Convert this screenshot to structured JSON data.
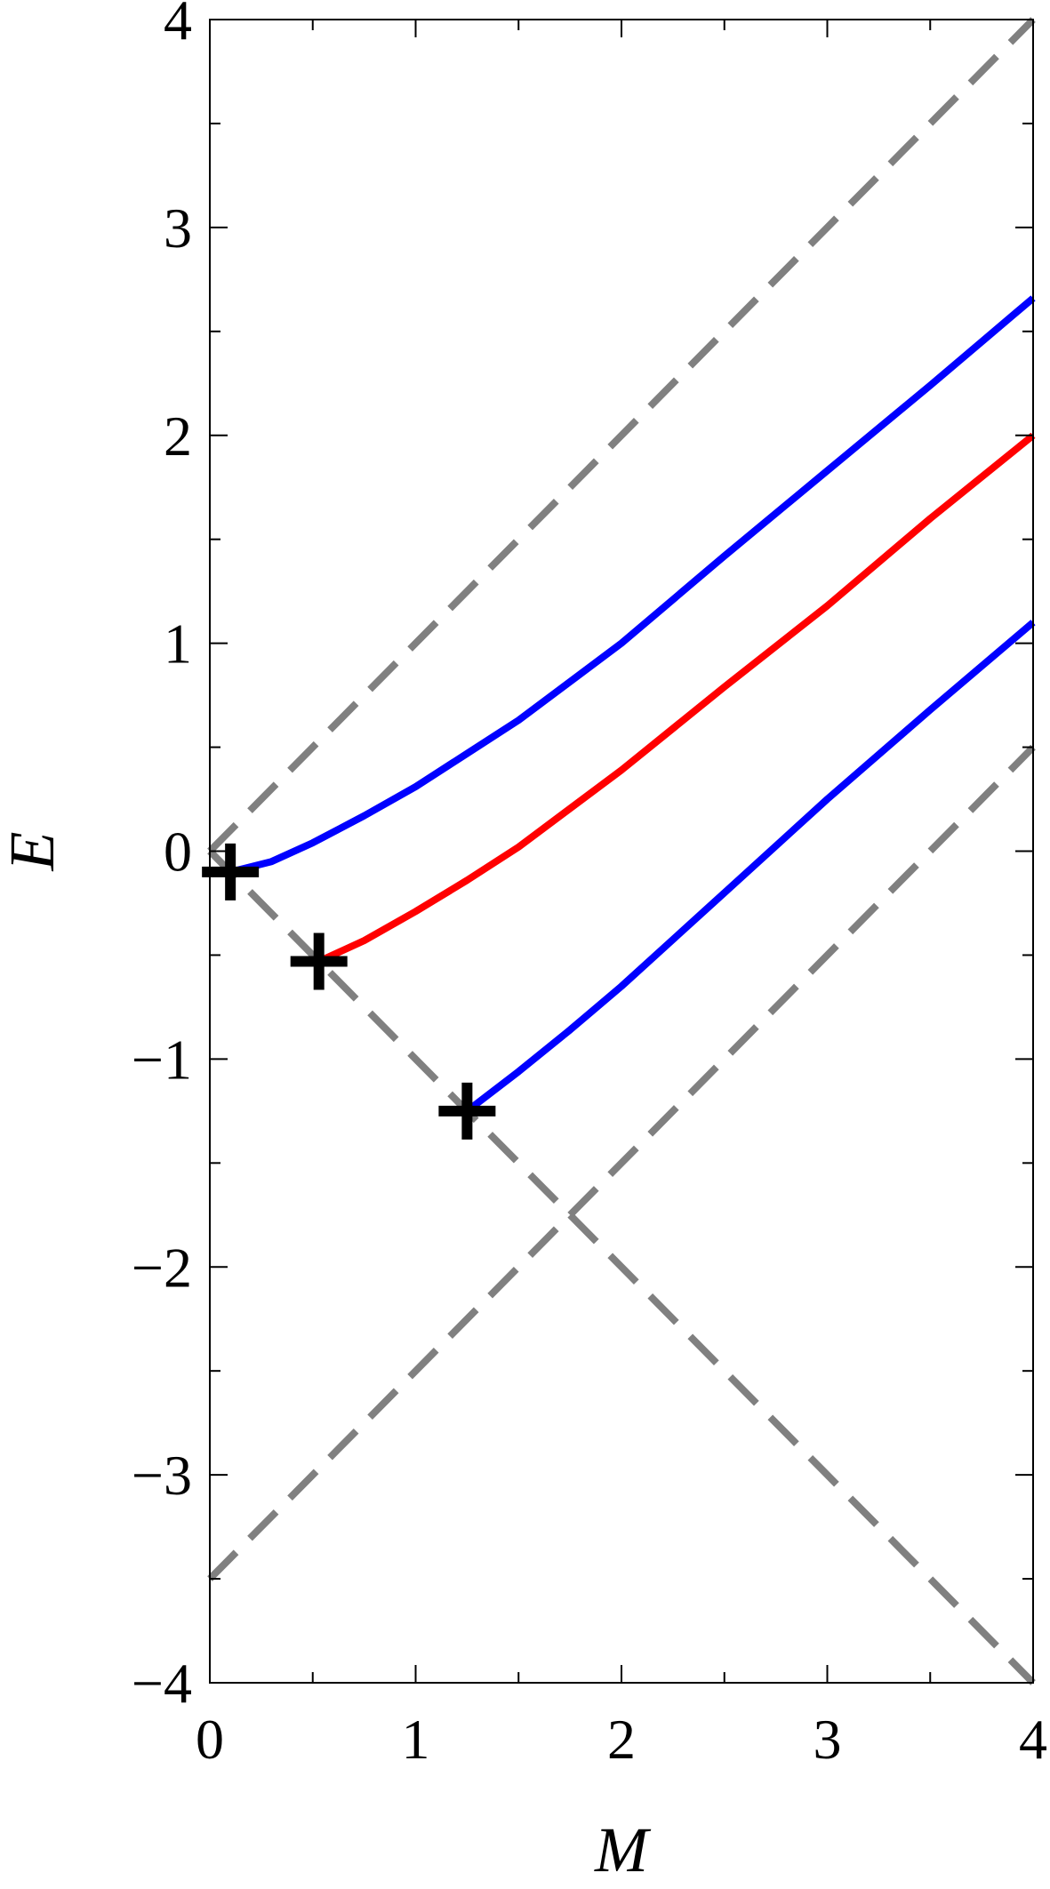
{
  "chart_data": {
    "type": "line",
    "xlabel": "M",
    "ylabel": "E",
    "xlim": [
      0,
      4
    ],
    "ylim": [
      -4,
      4
    ],
    "x_ticks": [
      0,
      1,
      2,
      3,
      4
    ],
    "y_ticks": [
      -4,
      -3,
      -2,
      -1,
      0,
      1,
      2,
      3,
      4
    ],
    "x_tick_labels": [
      "0",
      "1",
      "2",
      "3",
      "4"
    ],
    "y_tick_labels": [
      "−4",
      "−3",
      "−2",
      "−1",
      "0",
      "1",
      "2",
      "3",
      "4"
    ],
    "minor_ticks": true,
    "grid": false,
    "series": [
      {
        "color": "#0000ff",
        "style": "solid",
        "points": [
          [
            0.1,
            -0.1
          ],
          [
            0.3,
            -0.05
          ],
          [
            0.5,
            0.04
          ],
          [
            0.75,
            0.17
          ],
          [
            1.0,
            0.31
          ],
          [
            1.25,
            0.47
          ],
          [
            1.5,
            0.63
          ],
          [
            2.0,
            1.0
          ],
          [
            2.5,
            1.42
          ],
          [
            3.0,
            1.83
          ],
          [
            3.5,
            2.24
          ],
          [
            4.0,
            2.66
          ]
        ]
      },
      {
        "color": "#ff0000",
        "style": "solid",
        "points": [
          [
            0.53,
            -0.53
          ],
          [
            0.75,
            -0.43
          ],
          [
            1.0,
            -0.29
          ],
          [
            1.25,
            -0.14
          ],
          [
            1.5,
            0.02
          ],
          [
            2.0,
            0.39
          ],
          [
            2.5,
            0.79
          ],
          [
            3.0,
            1.18
          ],
          [
            3.5,
            1.6
          ],
          [
            4.0,
            2.0
          ]
        ]
      },
      {
        "color": "#0000ff",
        "style": "solid",
        "points": [
          [
            1.25,
            -1.25
          ],
          [
            1.5,
            -1.06
          ],
          [
            1.75,
            -0.86
          ],
          [
            2.0,
            -0.65
          ],
          [
            2.5,
            -0.2
          ],
          [
            3.0,
            0.25
          ],
          [
            3.5,
            0.68
          ],
          [
            4.0,
            1.1
          ]
        ]
      },
      {
        "color": "#808080",
        "style": "dashed",
        "points": [
          [
            0,
            0
          ],
          [
            4,
            4
          ]
        ]
      },
      {
        "color": "#808080",
        "style": "dashed",
        "points": [
          [
            0,
            0
          ],
          [
            4,
            -4
          ]
        ]
      },
      {
        "color": "#808080",
        "style": "dashed",
        "points": [
          [
            0,
            -3.5
          ],
          [
            4,
            0.5
          ]
        ]
      }
    ],
    "markers": {
      "symbol": "+",
      "color": "#000000",
      "points": [
        [
          0.1,
          -0.1
        ],
        [
          0.53,
          -0.53
        ],
        [
          1.25,
          -1.25
        ]
      ]
    }
  }
}
